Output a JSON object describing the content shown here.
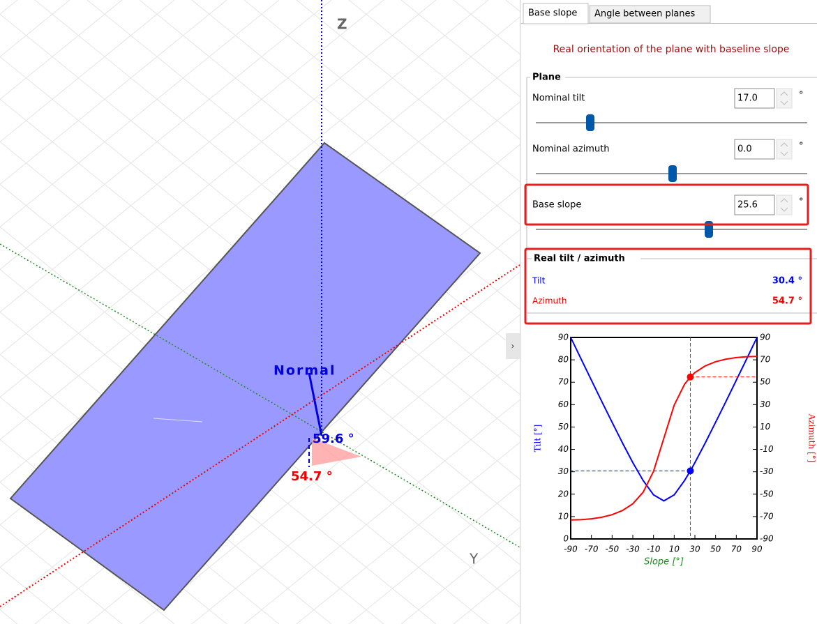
{
  "viewport": {
    "z_label": "Z",
    "y_label": "Y",
    "normal_label": "Normal",
    "tilt_angle_label": "59.6 °",
    "azimuth_angle_label": "54.7 °"
  },
  "tabs": [
    "Base slope",
    "Angle between planes"
  ],
  "panel": {
    "subtitle": "Real orientation of the plane with baseline slope",
    "plane_group": {
      "title": "Plane",
      "fields": [
        {
          "label": "Nominal tilt",
          "value": "17.0",
          "unit": "°"
        },
        {
          "label": "Nominal azimuth",
          "value": "0.0",
          "unit": "°"
        },
        {
          "label": "Base slope",
          "value": "25.6",
          "unit": "°"
        }
      ]
    },
    "real_group": {
      "title": "Real tilt / azimuth",
      "rows": [
        {
          "label": "Tilt",
          "value": "30.4 °"
        },
        {
          "label": "Azimuth",
          "value": "54.7 °"
        }
      ]
    }
  },
  "chart_data": {
    "type": "line",
    "x_label": "Slope [°]",
    "y_label": "Tilt [°]",
    "y2_label": "Azimuth [°]",
    "x": [
      -90,
      -80,
      -70,
      -60,
      -50,
      -40,
      -30,
      -20,
      -10,
      0,
      10,
      20,
      25.6,
      30,
      40,
      50,
      60,
      70,
      80,
      90
    ],
    "series": [
      {
        "name": "Tilt",
        "color": "#0000ff",
        "values": [
          90,
          80.4,
          70.9,
          61.4,
          52.1,
          42.9,
          34.1,
          26.1,
          19.7,
          17.0,
          19.7,
          26.1,
          30.4,
          34.1,
          42.9,
          52.1,
          61.4,
          70.9,
          80.4,
          90
        ]
      },
      {
        "name": "Azimuth",
        "color": "#ff0000",
        "axis": "y2",
        "values": [
          -73.0,
          -72.8,
          -72.0,
          -70.6,
          -68.3,
          -64.6,
          -58.6,
          -48.2,
          -29.6,
          0,
          29.6,
          48.2,
          54.7,
          58.6,
          64.6,
          68.3,
          70.6,
          72.0,
          72.8,
          73.0
        ]
      }
    ],
    "xlim": [
      -90,
      90
    ],
    "xticks": [
      -90,
      -70,
      -50,
      -30,
      -10,
      10,
      30,
      50,
      70,
      90
    ],
    "ylim": [
      0,
      90
    ],
    "yticks": [
      0,
      10,
      20,
      30,
      40,
      50,
      60,
      70,
      80,
      90
    ],
    "y2lim": [
      -90,
      90
    ],
    "y2ticks": [
      -90,
      -70,
      -50,
      -30,
      -10,
      10,
      30,
      50,
      70,
      90
    ],
    "marker_index": 12
  }
}
